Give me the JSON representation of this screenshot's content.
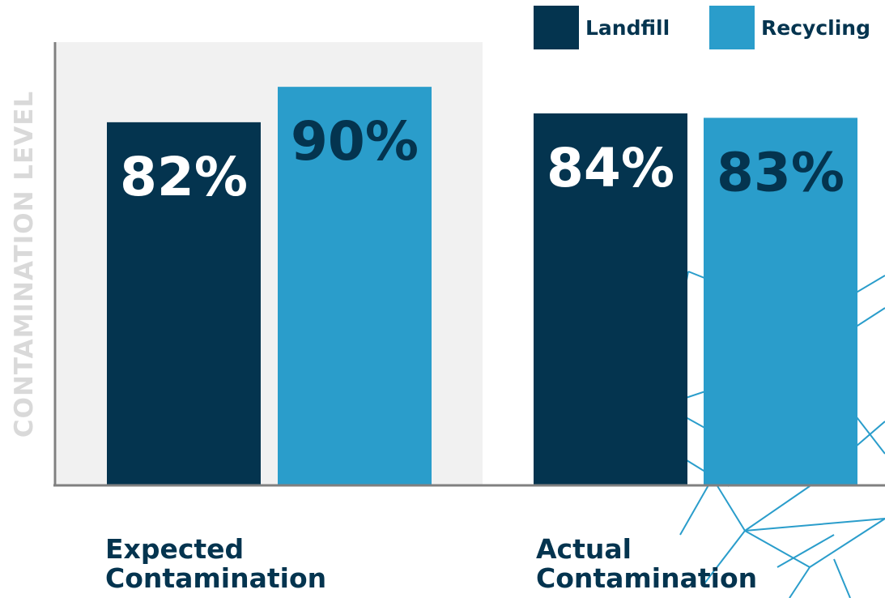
{
  "chart_data": {
    "type": "bar",
    "title": "",
    "ylabel": "CONTAMINATION LEVEL",
    "xlabel": "",
    "ylim": [
      0,
      100
    ],
    "grid": false,
    "legend_position": "top-right",
    "categories": [
      "Expected\nContamination",
      "Actual\nContamination"
    ],
    "series": [
      {
        "name": "Landfill",
        "color": "#04344f",
        "label_color": "#ffffff",
        "values": [
          82,
          84
        ],
        "labels": [
          "82%",
          "84%"
        ]
      },
      {
        "name": "Recycling",
        "color": "#2a9dcb",
        "label_color": "#04344f",
        "values": [
          90,
          83
        ],
        "labels": [
          "90%",
          "83%"
        ]
      }
    ],
    "highlight_category_background": "#f1f1f1",
    "axis_color": "#808080"
  }
}
